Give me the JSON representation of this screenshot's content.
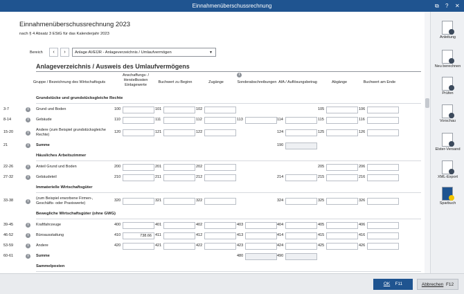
{
  "window": {
    "title": "Einnahmenüberschussrechnung"
  },
  "header": {
    "title": "Einnahmenüberschussrechnung 2023",
    "subtitle": "nach § 4 Absatz 3 EStG für das Kalenderjahr 2023"
  },
  "bereich": {
    "label": "Bereich",
    "selected": "Anlage AVEÜR - Anlageverzeichnis / Umlaufvermögen"
  },
  "section_title": "Anlageverzeichnis / Ausweis des Umlaufvermögens",
  "columns": [
    "Gruppe / Bezeichnung des Wirtschaftsguts",
    "Anschaffungs- / Herstellkosten Einlagewerte",
    "Buchwert zu Beginn",
    "Zugänge",
    "Sonderabschreibungen",
    "AfA / Auflösungsbetrag",
    "Abgänge",
    "Buchwert am Ende"
  ],
  "table": {
    "sections": [
      {
        "title": "Grundstücke und grundstücksgleiche Rechte",
        "rows": [
          {
            "line": "3-7",
            "label": "Grund und Boden",
            "fields": [
              {
                "code": "100"
              },
              {
                "code": "101"
              },
              {
                "code": "102"
              },
              null,
              null,
              {
                "code": "105"
              },
              {
                "code": "106"
              }
            ]
          },
          {
            "line": "8-14",
            "label": "Gebäude",
            "fields": [
              {
                "code": "110"
              },
              {
                "code": "111"
              },
              {
                "code": "112"
              },
              {
                "code": "113"
              },
              {
                "code": "114"
              },
              {
                "code": "115"
              },
              {
                "code": "116"
              }
            ]
          },
          {
            "line": "15-20",
            "label": "Andere (zum Beispiel grundstücksgleiche Rechte)",
            "fields": [
              {
                "code": "120"
              },
              {
                "code": "121"
              },
              {
                "code": "122"
              },
              null,
              {
                "code": "124"
              },
              {
                "code": "125"
              },
              {
                "code": "126"
              }
            ]
          }
        ],
        "total": {
          "line": "21",
          "label": "Summe",
          "fields": [
            null,
            null,
            null,
            null,
            {
              "code": "190"
            },
            null,
            null
          ]
        }
      },
      {
        "title": "Häusliches Arbeitszimmer",
        "rows": [
          {
            "line": "22-26",
            "label": "Anteil Grund und Boden",
            "fields": [
              {
                "code": "200"
              },
              {
                "code": "201"
              },
              {
                "code": "202"
              },
              null,
              null,
              {
                "code": "205"
              },
              {
                "code": "206"
              }
            ]
          },
          {
            "line": "27-32",
            "label": "Gebäudeteil",
            "fields": [
              {
                "code": "210"
              },
              {
                "code": "211"
              },
              {
                "code": "212"
              },
              null,
              {
                "code": "214"
              },
              {
                "code": "215"
              },
              {
                "code": "216"
              }
            ]
          }
        ]
      },
      {
        "title": "Immaterielle Wirtschaftsgüter",
        "rows": [
          {
            "line": "33-38",
            "label": "(zum Beispiel erworbene Firmen-, Geschäfts- oder Praxiswerte)",
            "fields": [
              {
                "code": "320"
              },
              {
                "code": "321"
              },
              {
                "code": "322"
              },
              null,
              {
                "code": "324"
              },
              {
                "code": "325"
              },
              {
                "code": "326"
              }
            ]
          }
        ]
      },
      {
        "title": "Bewegliche Wirtschaftsgüter (ohne GWG)",
        "rows": [
          {
            "line": "39-45",
            "label": "Kraftfahrzeuge",
            "fields": [
              {
                "code": "400"
              },
              {
                "code": "401"
              },
              {
                "code": "402"
              },
              {
                "code": "403"
              },
              {
                "code": "404"
              },
              {
                "code": "405"
              },
              {
                "code": "406"
              }
            ]
          },
          {
            "line": "46-52",
            "label": "Büroausstattung",
            "fields": [
              {
                "code": "410",
                "value": "738.66"
              },
              {
                "code": "411"
              },
              {
                "code": "412"
              },
              {
                "code": "413"
              },
              {
                "code": "414"
              },
              {
                "code": "415"
              },
              {
                "code": "416"
              }
            ]
          },
          {
            "line": "53-59",
            "label": "Andere",
            "fields": [
              {
                "code": "420"
              },
              {
                "code": "421"
              },
              {
                "code": "422"
              },
              {
                "code": "423"
              },
              {
                "code": "424"
              },
              {
                "code": "425"
              },
              {
                "code": "426"
              }
            ]
          }
        ],
        "total": {
          "line": "60-61",
          "label": "Summe",
          "fields": [
            null,
            null,
            null,
            {
              "code": "480"
            },
            {
              "code": "490"
            },
            null,
            null
          ]
        }
      },
      {
        "title": "Sammelposten",
        "rows": []
      }
    ]
  },
  "sidebar": [
    "Anleitung",
    "Neu berechnen",
    "Prüfen",
    "Vorschau",
    "Elster-Versand",
    "XML-Export",
    "Sparbuch"
  ],
  "footer": {
    "ok": {
      "label": "OK",
      "key": "F11"
    },
    "cancel": {
      "label": "Abbrechen",
      "key": "F12"
    }
  }
}
